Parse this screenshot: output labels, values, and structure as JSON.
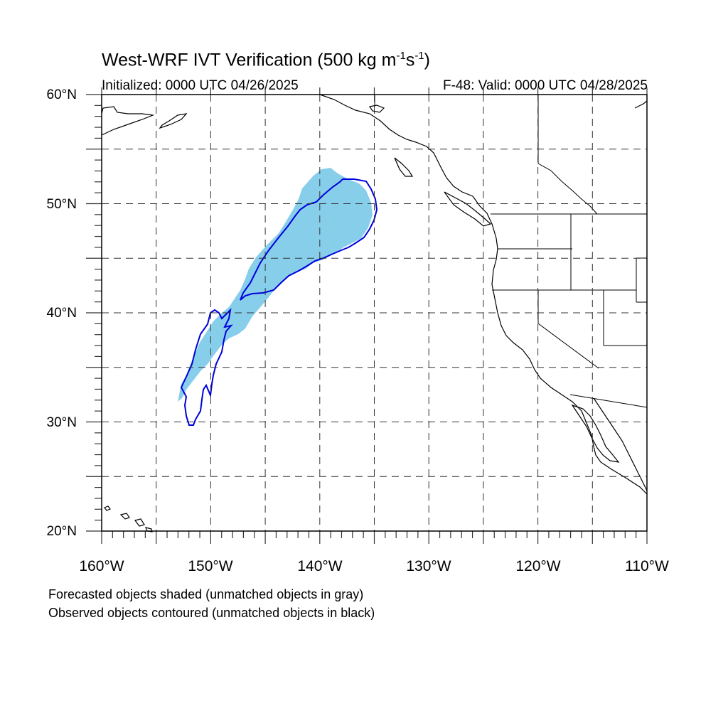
{
  "title": "West-WRF IVT Verification (500 kg m",
  "title_units": {
    "m_exp": "-1",
    "s": "s",
    "s_exp": "-1",
    "close": ")"
  },
  "initialized": "Initialized: 0000 UTC 04/26/2025",
  "valid": "F-48: Valid: 0000 UTC 04/28/2025",
  "lat_labels": [
    "60°N",
    "50°N",
    "40°N",
    "30°N",
    "20°N"
  ],
  "lon_labels": [
    "160°W",
    "150°W",
    "140°W",
    "130°W",
    "120°W",
    "110°W"
  ],
  "captions": [
    "Forecasted objects shaded (unmatched objects in gray)",
    "Observed objects contoured (unmatched objects in black)"
  ],
  "map_extent": {
    "lon_min": -160,
    "lon_max": -110,
    "lat_min": 20,
    "lat_max": 60
  },
  "gridlines": {
    "style": "dashed",
    "lon_step": 5,
    "lat_step": 5
  },
  "colors": {
    "forecast_fill": "#87CEEB",
    "observed_contour": "#0000DD",
    "coastline": "#000000"
  },
  "objects": [
    {
      "type": "forecast-shaded",
      "matched": true
    },
    {
      "type": "observed-contour",
      "matched": true
    },
    {
      "type": "observed-contour",
      "matched": true
    }
  ]
}
